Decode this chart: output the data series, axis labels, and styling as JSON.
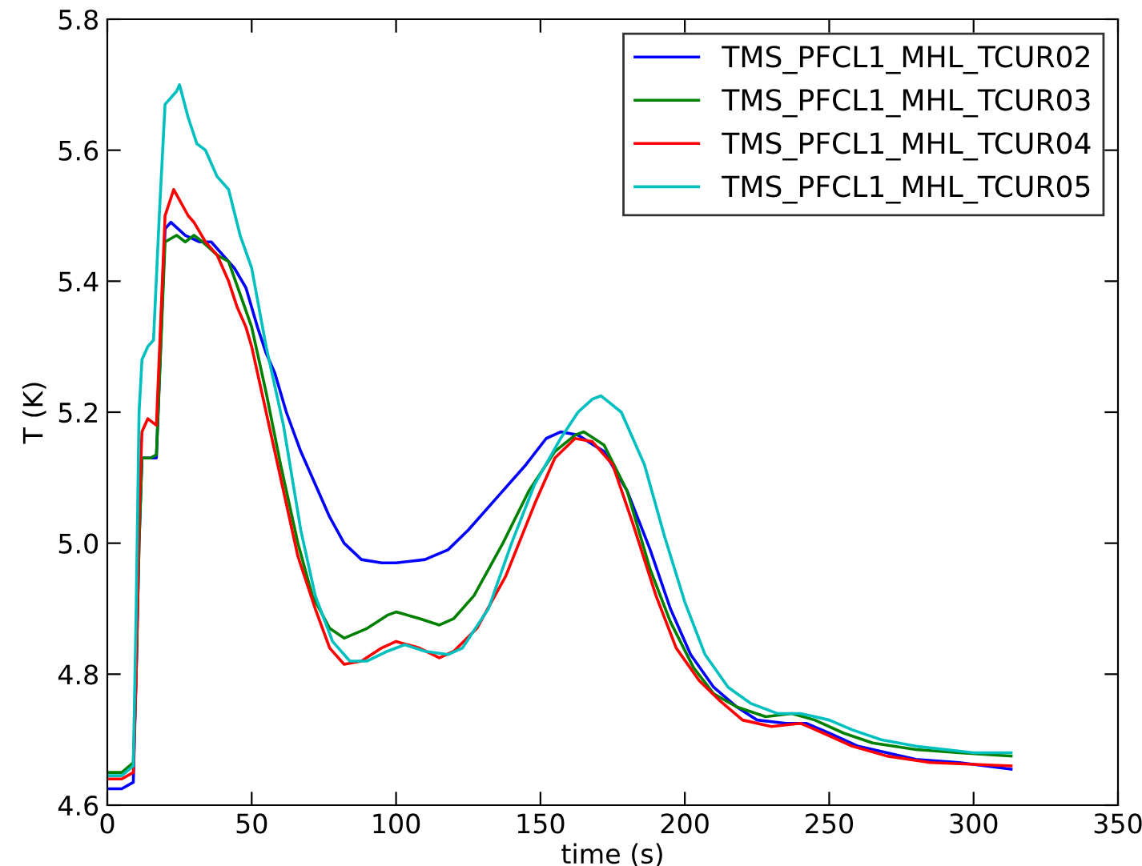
{
  "chart_data": {
    "type": "line",
    "xlabel": "time (s)",
    "ylabel": "T (K)",
    "xlim": [
      0,
      350
    ],
    "xticks": [
      0,
      50,
      100,
      150,
      200,
      250,
      300,
      350
    ],
    "ylim": [
      4.6,
      5.8
    ],
    "yticks": [
      4.6,
      4.8,
      {
        "value": 5.0,
        "label": "5.0"
      },
      5.2,
      5.4,
      5.6,
      5.8
    ],
    "grid": false,
    "legend": "top right",
    "marker": "none",
    "line_style": "solid",
    "series": [
      {
        "name": "TMS_PFCL1_MHL_TCUR02",
        "color": "#0000ff",
        "x": [
          0,
          5,
          9,
          10,
          11,
          12,
          15,
          17,
          20,
          22,
          27,
          32,
          36,
          40,
          44,
          48,
          52,
          55,
          58,
          62,
          67,
          72,
          77,
          82,
          88,
          95,
          100,
          110,
          118,
          125,
          135,
          145,
          152,
          157,
          163,
          172,
          180,
          188,
          195,
          202,
          210,
          218,
          225,
          235,
          242,
          250,
          260,
          270,
          280,
          295,
          313
        ],
        "values": [
          4.625,
          4.625,
          4.635,
          4.8,
          5.0,
          5.13,
          5.13,
          5.13,
          5.48,
          5.49,
          5.47,
          5.46,
          5.46,
          5.44,
          5.42,
          5.39,
          5.33,
          5.29,
          5.26,
          5.2,
          5.14,
          5.09,
          5.04,
          5.0,
          4.975,
          4.97,
          4.97,
          4.975,
          4.99,
          5.02,
          5.07,
          5.12,
          5.16,
          5.17,
          5.165,
          5.14,
          5.08,
          4.99,
          4.9,
          4.83,
          4.78,
          4.75,
          4.73,
          4.725,
          4.725,
          4.71,
          4.69,
          4.68,
          4.67,
          4.665,
          4.655
        ]
      },
      {
        "name": "TMS_PFCL1_MHL_TCUR03",
        "color": "#008000",
        "x": [
          0,
          5,
          9,
          10,
          11,
          12,
          15,
          17,
          20,
          24,
          27,
          30,
          33,
          38,
          42,
          46,
          50,
          55,
          60,
          66,
          71,
          77,
          82,
          90,
          97,
          100,
          108,
          115,
          120,
          127,
          137,
          146,
          155,
          162,
          165,
          172,
          180,
          188,
          195,
          203,
          210,
          218,
          228,
          237,
          245,
          255,
          265,
          280,
          295,
          313
        ],
        "values": [
          4.65,
          4.65,
          4.665,
          4.8,
          5.0,
          5.13,
          5.13,
          5.135,
          5.46,
          5.47,
          5.46,
          5.47,
          5.46,
          5.44,
          5.43,
          5.38,
          5.33,
          5.23,
          5.12,
          5.0,
          4.92,
          4.87,
          4.855,
          4.87,
          4.89,
          4.895,
          4.885,
          4.875,
          4.885,
          4.92,
          5.0,
          5.08,
          5.14,
          5.165,
          5.17,
          5.15,
          5.08,
          4.96,
          4.88,
          4.81,
          4.77,
          4.75,
          4.735,
          4.74,
          4.73,
          4.71,
          4.695,
          4.685,
          4.68,
          4.675
        ]
      },
      {
        "name": "TMS_PFCL1_MHL_TCUR04",
        "color": "#ff0000",
        "x": [
          0,
          5,
          9,
          10,
          11,
          12,
          14,
          17,
          20,
          23,
          28,
          30,
          34,
          38,
          42,
          45,
          48,
          50,
          54,
          60,
          66,
          72,
          77,
          82,
          88,
          95,
          100,
          108,
          115,
          120,
          128,
          138,
          148,
          155,
          162,
          168,
          175,
          182,
          190,
          197,
          205,
          212,
          220,
          230,
          240,
          248,
          258,
          270,
          285,
          313
        ],
        "values": [
          4.64,
          4.64,
          4.65,
          4.8,
          5.05,
          5.17,
          5.19,
          5.18,
          5.5,
          5.54,
          5.5,
          5.49,
          5.46,
          5.44,
          5.4,
          5.36,
          5.33,
          5.3,
          5.22,
          5.1,
          4.98,
          4.9,
          4.84,
          4.815,
          4.82,
          4.84,
          4.85,
          4.84,
          4.825,
          4.835,
          4.87,
          4.95,
          5.06,
          5.13,
          5.16,
          5.155,
          5.12,
          5.03,
          4.92,
          4.84,
          4.79,
          4.76,
          4.73,
          4.72,
          4.725,
          4.71,
          4.69,
          4.675,
          4.665,
          4.66
        ]
      },
      {
        "name": "TMS_PFCL1_MHL_TCUR05",
        "color": "#00bfbf",
        "x": [
          0,
          5,
          9,
          10,
          11,
          12,
          14,
          16,
          18,
          20,
          24,
          25,
          28,
          31,
          34,
          38,
          42,
          46,
          50,
          55,
          61,
          67,
          72,
          78,
          84,
          90,
          97,
          103,
          110,
          118,
          123,
          132,
          140,
          148,
          157,
          163,
          168,
          171,
          178,
          186,
          193,
          200,
          207,
          215,
          223,
          232,
          240,
          250,
          258,
          268,
          280,
          300,
          313
        ],
        "values": [
          4.645,
          4.645,
          4.66,
          4.9,
          5.2,
          5.28,
          5.3,
          5.31,
          5.5,
          5.67,
          5.69,
          5.7,
          5.65,
          5.61,
          5.6,
          5.56,
          5.54,
          5.47,
          5.42,
          5.3,
          5.18,
          5.02,
          4.92,
          4.85,
          4.82,
          4.82,
          4.835,
          4.845,
          4.835,
          4.83,
          4.84,
          4.9,
          5.0,
          5.09,
          5.16,
          5.2,
          5.22,
          5.225,
          5.2,
          5.12,
          5.01,
          4.91,
          4.83,
          4.78,
          4.755,
          4.74,
          4.74,
          4.73,
          4.715,
          4.7,
          4.69,
          4.68,
          4.68
        ]
      }
    ]
  }
}
